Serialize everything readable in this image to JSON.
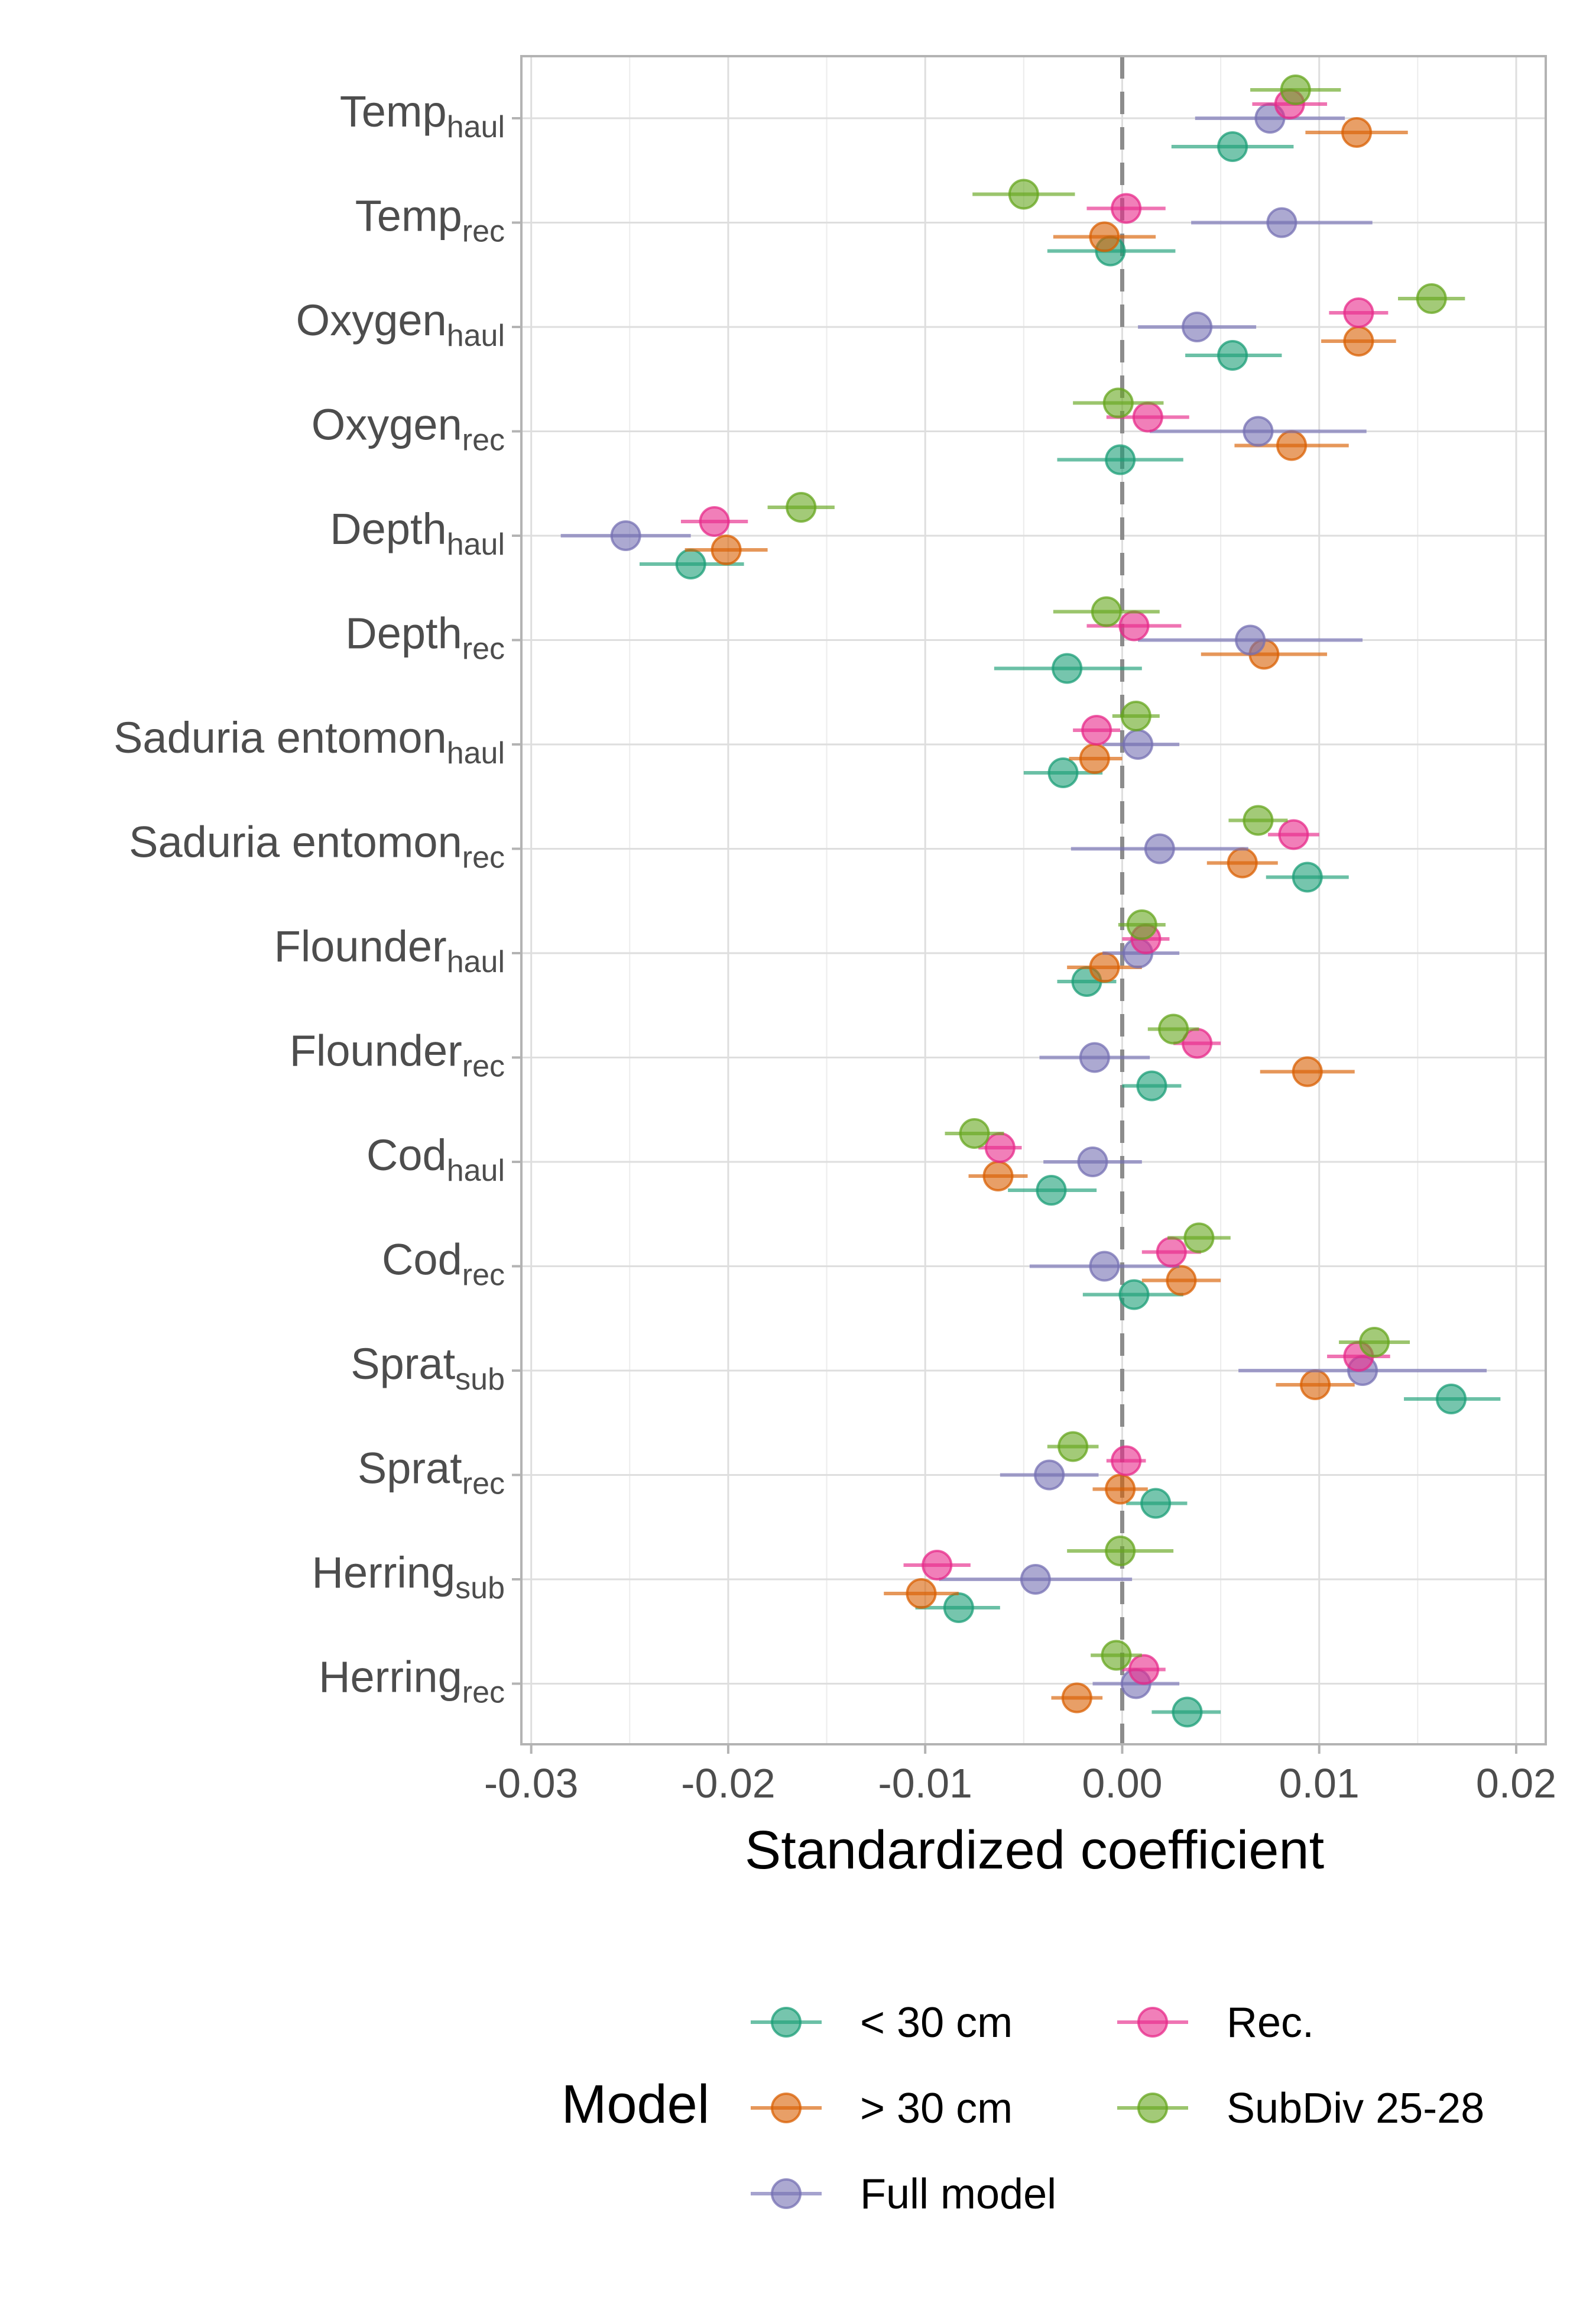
{
  "chart_data": {
    "type": "scatter",
    "subtype": "coefficient-dot-whisker",
    "xlabel": "Standardized coefficient",
    "xlim": [
      -0.0305,
      0.0215
    ],
    "xticks": [
      -0.03,
      -0.02,
      -0.01,
      0.0,
      0.01,
      0.02
    ],
    "xtick_labels": [
      "-0.03",
      "-0.02",
      "-0.01",
      "0.00",
      "0.01",
      "0.02"
    ],
    "reference_line": 0.0,
    "grid": true,
    "legend": {
      "title": "Model",
      "placement": "bottom",
      "entries": [
        "< 30 cm",
        "> 30 cm",
        "Full model",
        "Rec.",
        "SubDiv 25-28"
      ]
    },
    "categories": [
      {
        "base": "Temp",
        "sub": "haul"
      },
      {
        "base": "Temp",
        "sub": "rec"
      },
      {
        "base": "Oxygen",
        "sub": "haul"
      },
      {
        "base": "Oxygen",
        "sub": "rec"
      },
      {
        "base": "Depth",
        "sub": "haul"
      },
      {
        "base": "Depth",
        "sub": "rec"
      },
      {
        "base": "Saduria entomon",
        "sub": "haul"
      },
      {
        "base": "Saduria entomon",
        "sub": "rec"
      },
      {
        "base": "Flounder",
        "sub": "haul"
      },
      {
        "base": "Flounder",
        "sub": "rec"
      },
      {
        "base": "Cod",
        "sub": "haul"
      },
      {
        "base": "Cod",
        "sub": "rec"
      },
      {
        "base": "Sprat",
        "sub": "sub"
      },
      {
        "base": "Sprat",
        "sub": "rec"
      },
      {
        "base": "Herring",
        "sub": "sub"
      },
      {
        "base": "Herring",
        "sub": "rec"
      }
    ],
    "series": [
      {
        "name": "< 30 cm",
        "color": "#1b9e77",
        "estimate": [
          0.0056,
          -0.0006,
          0.0056,
          -0.0001,
          -0.0219,
          -0.0028,
          -0.003,
          0.0094,
          -0.0018,
          0.0015,
          -0.0036,
          0.0006,
          0.0167,
          0.0017,
          -0.0083,
          0.0033
        ],
        "lower": [
          0.0025,
          -0.0038,
          0.0032,
          -0.0033,
          -0.0245,
          -0.0065,
          -0.005,
          0.0073,
          -0.0033,
          0.0,
          -0.0058,
          -0.002,
          0.0143,
          0.0002,
          -0.0105,
          0.0015
        ],
        "upper": [
          0.0087,
          0.0027,
          0.0081,
          0.0031,
          -0.0192,
          0.001,
          -0.001,
          0.0115,
          -0.0003,
          0.003,
          -0.0013,
          0.0031,
          0.0192,
          0.0033,
          -0.0062,
          0.005
        ]
      },
      {
        "name": "> 30 cm",
        "color": "#d95f02",
        "estimate": [
          0.0119,
          -0.0009,
          0.012,
          0.0086,
          -0.0201,
          0.0072,
          -0.0014,
          0.0061,
          -0.0009,
          0.0094,
          -0.0063,
          0.003,
          0.0098,
          -0.0001,
          -0.0102,
          -0.0023
        ],
        "lower": [
          0.0093,
          -0.0035,
          0.0101,
          0.0057,
          -0.0222,
          0.004,
          -0.0027,
          0.0043,
          -0.0028,
          0.007,
          -0.0078,
          0.001,
          0.0078,
          -0.0015,
          -0.0121,
          -0.0036
        ],
        "upper": [
          0.0145,
          0.0017,
          0.0139,
          0.0115,
          -0.018,
          0.0104,
          0.0,
          0.0079,
          0.001,
          0.0118,
          -0.0048,
          0.005,
          0.0118,
          0.0013,
          -0.0083,
          -0.001
        ]
      },
      {
        "name": "Full model",
        "color": "#7570b3",
        "estimate": [
          0.0075,
          0.0081,
          0.0038,
          0.0069,
          -0.0252,
          0.0065,
          0.0008,
          0.0019,
          0.0008,
          -0.0014,
          -0.0015,
          -0.0009,
          0.0122,
          -0.0037,
          -0.0044,
          0.0007
        ],
        "lower": [
          0.0037,
          0.0035,
          0.0008,
          0.0014,
          -0.0285,
          0.0008,
          -0.001,
          -0.0026,
          -0.001,
          -0.0042,
          -0.004,
          -0.0047,
          0.0059,
          -0.0062,
          -0.0093,
          -0.0015
        ],
        "upper": [
          0.0113,
          0.0127,
          0.0068,
          0.0124,
          -0.0219,
          0.0122,
          0.0029,
          0.0064,
          0.0029,
          0.0014,
          0.001,
          0.0029,
          0.0185,
          -0.0012,
          0.0005,
          0.0029
        ]
      },
      {
        "name": "Rec.",
        "color": "#e7298a",
        "estimate": [
          0.0085,
          0.0002,
          0.012,
          0.0013,
          -0.0207,
          0.0006,
          -0.0013,
          0.0087,
          0.0012,
          0.0038,
          -0.0062,
          0.0025,
          0.012,
          0.0002,
          -0.0094,
          0.0011
        ],
        "lower": [
          0.0066,
          -0.0018,
          0.0105,
          -0.0008,
          -0.0224,
          -0.0018,
          -0.0025,
          0.0074,
          0.0,
          0.0026,
          -0.0073,
          0.001,
          0.0104,
          -0.0008,
          -0.0111,
          0.0
        ],
        "upper": [
          0.0104,
          0.0022,
          0.0135,
          0.0034,
          -0.019,
          0.003,
          -0.0001,
          0.01,
          0.0024,
          0.005,
          -0.0051,
          0.004,
          0.0136,
          0.0012,
          -0.0077,
          0.0022
        ]
      },
      {
        "name": "SubDiv 25-28",
        "color": "#66a61e",
        "estimate": [
          0.0088,
          -0.005,
          0.0157,
          -0.0002,
          -0.0163,
          -0.0008,
          0.0007,
          0.0069,
          0.001,
          0.0026,
          -0.0075,
          0.0039,
          0.0128,
          -0.0025,
          -0.0001,
          -0.0003
        ],
        "lower": [
          0.0065,
          -0.0076,
          0.014,
          -0.0025,
          -0.018,
          -0.0035,
          -0.0005,
          0.0054,
          -0.0002,
          0.0013,
          -0.009,
          0.0023,
          0.011,
          -0.0038,
          -0.0028,
          -0.0016
        ],
        "upper": [
          0.0111,
          -0.0024,
          0.0174,
          0.0021,
          -0.0146,
          0.0019,
          0.0019,
          0.0084,
          0.0022,
          0.0039,
          -0.006,
          0.0055,
          0.0146,
          -0.0012,
          0.0026,
          0.001
        ]
      }
    ]
  }
}
